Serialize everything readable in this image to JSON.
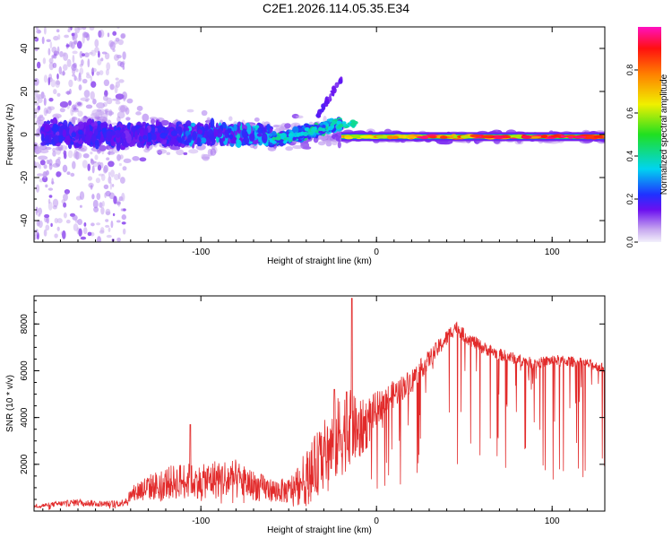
{
  "title": "C2E1.2026.114.05.35.E34",
  "colors": {
    "line": "#e22b2b",
    "axis": "#000000",
    "spectro_bg": "#ffffff"
  },
  "chart_data": [
    {
      "type": "heatmap",
      "name": "spectrogram",
      "xlabel": "Height of straight line (km)",
      "ylabel": "Frequency (Hz)",
      "xlim": [
        -195,
        130
      ],
      "ylim": [
        -50,
        50
      ],
      "x_ticks": [
        -100,
        0,
        100
      ],
      "x_tick_labels": [
        "-100",
        "0",
        "100"
      ],
      "y_ticks": [
        -40,
        -20,
        0,
        20,
        40
      ],
      "y_tick_labels": [
        "-40",
        "-20",
        "0",
        "20",
        "40"
      ],
      "colorbar": {
        "label": "Normalized spectral amplitude",
        "range": [
          0,
          1
        ],
        "ticks": [
          0.0,
          0.2,
          0.4,
          0.6,
          0.8
        ],
        "tick_labels": [
          "0.0",
          "0.2",
          "0.4",
          "0.6",
          "0.8"
        ],
        "stops": [
          {
            "v": 0.0,
            "c": "#f3f0fb"
          },
          {
            "v": 0.06,
            "c": "#c6a6ef"
          },
          {
            "v": 0.15,
            "c": "#6b10f0"
          },
          {
            "v": 0.22,
            "c": "#2030ff"
          },
          {
            "v": 0.34,
            "c": "#00d4f0"
          },
          {
            "v": 0.5,
            "c": "#20e020"
          },
          {
            "v": 0.64,
            "c": "#f0f000"
          },
          {
            "v": 0.78,
            "c": "#ff8000"
          },
          {
            "v": 0.9,
            "c": "#ff1010"
          },
          {
            "v": 1.0,
            "c": "#ff10c0"
          }
        ]
      },
      "features": [
        {
          "x_start": -195,
          "x_end": -145,
          "kind": "scatter-weak",
          "freq_spread": 50
        },
        {
          "x_start": -195,
          "x_end": -60,
          "kind": "broadband",
          "center_hz": 0,
          "spread_hz": 10
        },
        {
          "x_start": -60,
          "x_end": -20,
          "kind": "rising-band",
          "center_hz_start": -3,
          "center_hz_end": 6
        },
        {
          "x_start": -20,
          "x_end": 130,
          "kind": "narrow-line",
          "center_hz": -1,
          "spread_hz": 2
        }
      ]
    },
    {
      "type": "line",
      "name": "snr",
      "xlabel": "Height of straight line (km)",
      "ylabel": "SNR (10 * v/v)",
      "xlim": [
        -195,
        130
      ],
      "ylim": [
        0,
        9200
      ],
      "x_ticks": [
        -100,
        0,
        100
      ],
      "x_tick_labels": [
        "-100",
        "0",
        "100"
      ],
      "y_ticks": [
        2000,
        4000,
        6000,
        8000
      ],
      "y_tick_labels": [
        "2000",
        "4000",
        "6000",
        "8000"
      ],
      "envelope": {
        "x": [
          -195,
          -185,
          -170,
          -155,
          -145,
          -135,
          -120,
          -110,
          -100,
          -90,
          -80,
          -70,
          -60,
          -50,
          -40,
          -30,
          -25,
          -20,
          -15,
          -10,
          -5,
          0,
          10,
          20,
          30,
          40,
          45,
          50,
          60,
          70,
          80,
          90,
          100,
          110,
          120,
          130
        ],
        "y": [
          200,
          280,
          380,
          300,
          350,
          900,
          1200,
          1300,
          1250,
          1400,
          1350,
          1100,
          900,
          850,
          1400,
          2400,
          2800,
          3300,
          3600,
          3400,
          3800,
          4400,
          5000,
          5600,
          6500,
          7400,
          7900,
          7500,
          7000,
          6700,
          6500,
          6300,
          6450,
          6400,
          6300,
          6100
        ],
        "noise": [
          80,
          100,
          150,
          120,
          150,
          500,
          700,
          800,
          700,
          900,
          850,
          650,
          500,
          550,
          1200,
          1500,
          1600,
          1900,
          1600,
          1300,
          1100,
          700,
          600,
          500,
          400,
          350,
          300,
          300,
          280,
          260,
          250,
          240,
          240,
          230,
          220,
          200
        ]
      },
      "spikes": [
        {
          "x": -14,
          "y": 9100
        },
        {
          "x": -17,
          "y": 5100
        },
        {
          "x": -24,
          "y": 5200
        },
        {
          "x": -106,
          "y": 3700
        }
      ]
    }
  ]
}
